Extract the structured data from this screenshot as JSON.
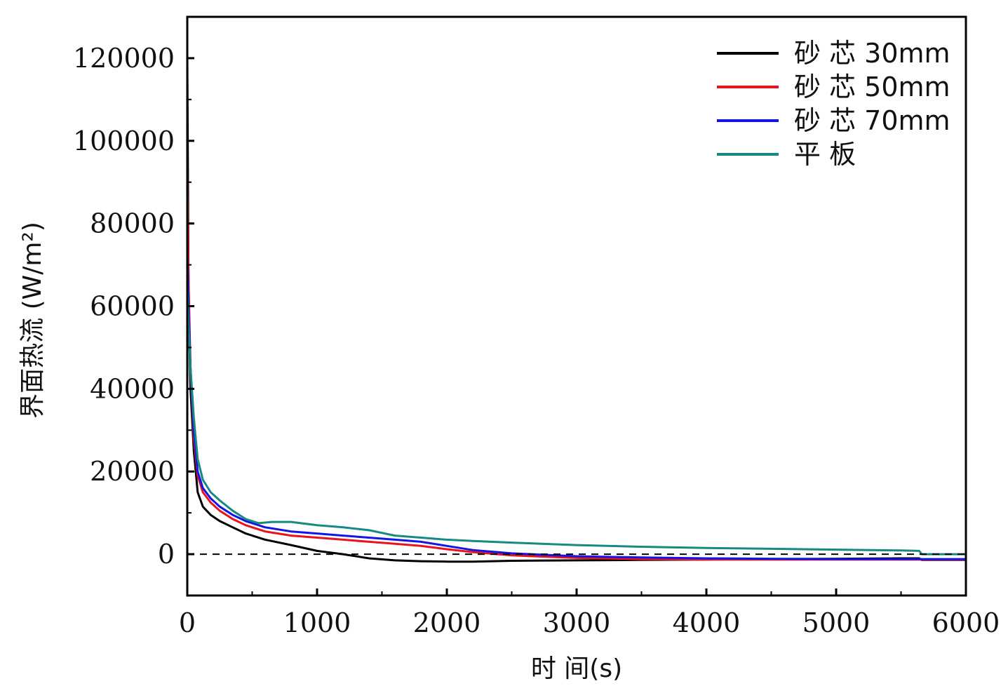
{
  "chart_data": {
    "type": "line",
    "title": "",
    "xlabel": "时 间(s)",
    "ylabel": "界面热流 (W/m²)",
    "xlim": [
      0,
      6000
    ],
    "ylim": [
      -10000,
      130000
    ],
    "xticks": [
      0,
      1000,
      2000,
      3000,
      4000,
      5000,
      6000
    ],
    "yticks": [
      0,
      20000,
      40000,
      60000,
      80000,
      100000,
      120000
    ],
    "xtick_labels": [
      "0",
      "1000",
      "2000",
      "3000",
      "4000",
      "5000",
      "6000"
    ],
    "ytick_labels": [
      "0",
      "20000",
      "40000",
      "60000",
      "80000",
      "100000",
      "120000"
    ],
    "grid": false,
    "legend_position": "top-right",
    "reference_line": {
      "y": 0,
      "style": "dashed",
      "color": "#000000"
    },
    "series": [
      {
        "name": "砂 芯 30mm",
        "color": "#000000",
        "x": [
          0,
          10,
          25,
          50,
          80,
          120,
          180,
          250,
          350,
          450,
          600,
          800,
          1000,
          1200,
          1400,
          1600,
          1800,
          2000,
          2200,
          2500,
          3000,
          3500,
          4000,
          4500,
          5000,
          5500,
          5640,
          5660,
          6000
        ],
        "y": [
          120000,
          60000,
          40000,
          25000,
          15000,
          11500,
          9500,
          8000,
          6500,
          5000,
          3500,
          2200,
          800,
          0,
          -1000,
          -1500,
          -1700,
          -1800,
          -1800,
          -1600,
          -1500,
          -1400,
          -1300,
          -1200,
          -1100,
          -1000,
          -1000,
          -1400,
          -1400
        ]
      },
      {
        "name": "砂 芯 50mm",
        "color": "#e8141c",
        "x": [
          0,
          10,
          25,
          50,
          80,
          120,
          180,
          250,
          350,
          450,
          600,
          800,
          1000,
          1200,
          1400,
          1600,
          1800,
          2000,
          2200,
          2500,
          3000,
          3500,
          4000,
          4500,
          5000,
          5500,
          6000
        ],
        "y": [
          93000,
          65000,
          45000,
          28000,
          19000,
          15000,
          12500,
          10500,
          8500,
          7000,
          5500,
          4500,
          4000,
          3500,
          3000,
          2500,
          2000,
          1200,
          500,
          -300,
          -900,
          -1200,
          -1300,
          -1300,
          -1300,
          -1300,
          -1300
        ]
      },
      {
        "name": "砂 芯 70mm",
        "color": "#1414e8",
        "x": [
          0,
          10,
          25,
          50,
          80,
          120,
          180,
          250,
          350,
          450,
          600,
          800,
          1000,
          1200,
          1400,
          1600,
          1800,
          2000,
          2200,
          2500,
          3000,
          3500,
          4000,
          4500,
          5000,
          5500,
          6000
        ],
        "y": [
          73000,
          60000,
          45000,
          30000,
          20000,
          16000,
          13500,
          11500,
          9500,
          8000,
          6500,
          5500,
          5000,
          4500,
          4000,
          3500,
          3000,
          2000,
          1000,
          200,
          -500,
          -800,
          -1000,
          -1100,
          -1200,
          -1200,
          -1200
        ]
      },
      {
        "name": "平 板",
        "color": "#168a80",
        "x": [
          0,
          10,
          25,
          50,
          80,
          120,
          180,
          250,
          350,
          450,
          550,
          650,
          800,
          1000,
          1200,
          1400,
          1600,
          1800,
          2000,
          2200,
          2500,
          3000,
          3500,
          4000,
          4500,
          5000,
          5500,
          5640,
          5660,
          6000
        ],
        "y": [
          65000,
          55000,
          45000,
          33000,
          23000,
          18000,
          15000,
          13000,
          10500,
          8500,
          7500,
          7800,
          7800,
          7000,
          6500,
          5800,
          4500,
          4000,
          3500,
          3200,
          2800,
          2200,
          1800,
          1500,
          1300,
          1100,
          900,
          800,
          0,
          0
        ]
      }
    ]
  }
}
